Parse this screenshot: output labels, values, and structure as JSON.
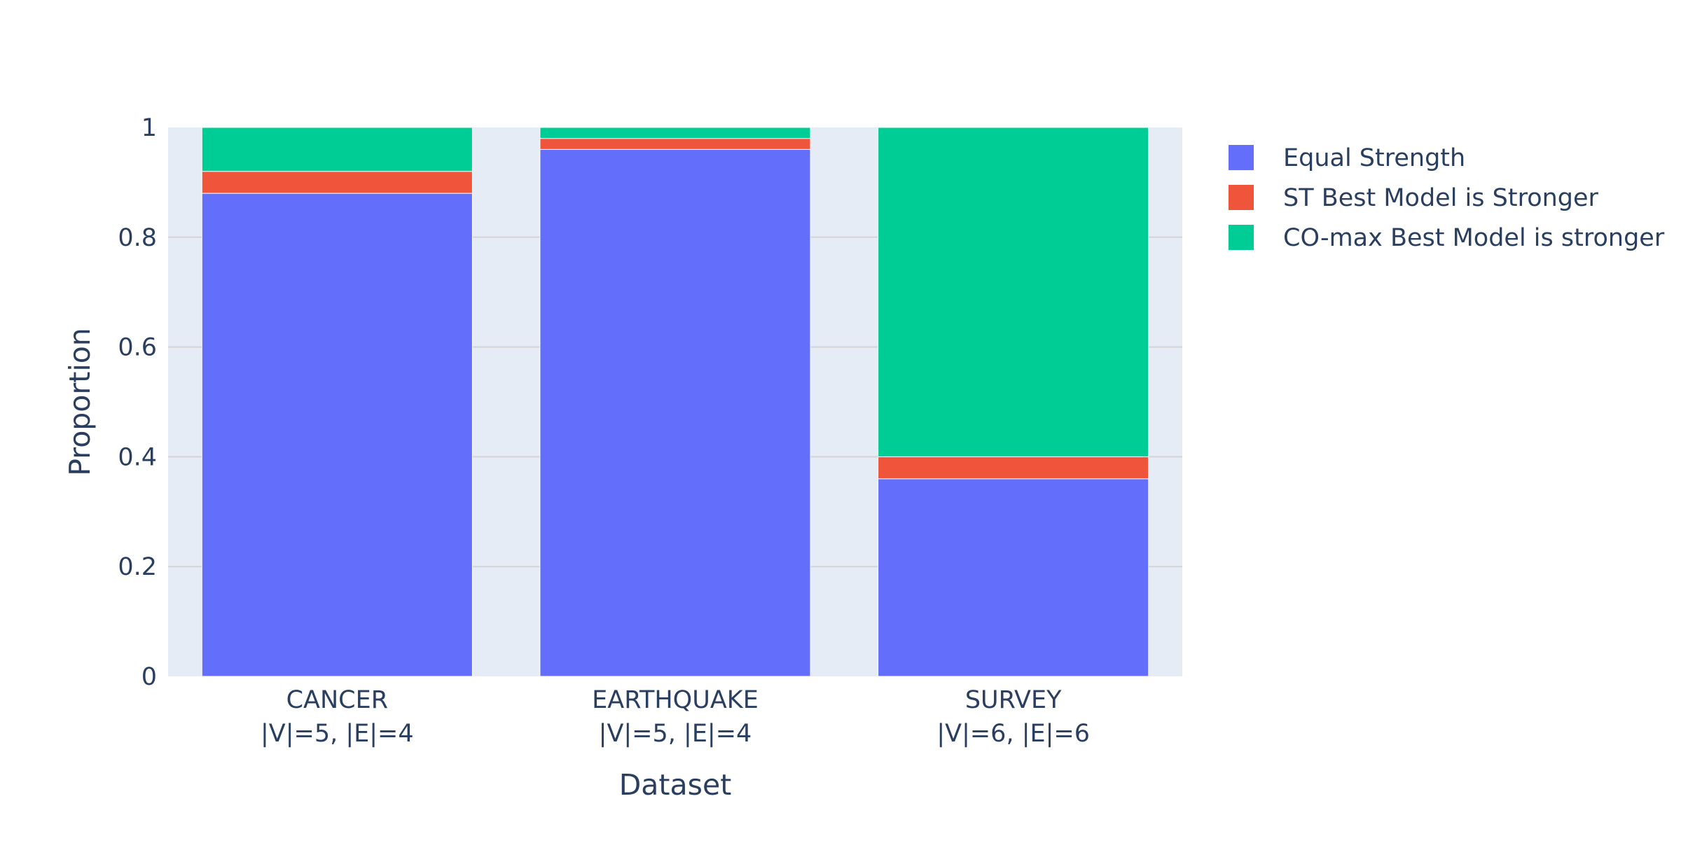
{
  "chart_data": {
    "type": "bar",
    "barmode": "stack",
    "title": "",
    "xlabel": "Dataset",
    "ylabel": "Proportion",
    "categories": [
      [
        "CANCER",
        "|V|=5, |E|=4"
      ],
      [
        "EARTHQUAKE",
        "|V|=5, |E|=4"
      ],
      [
        "SURVEY",
        "|V|=6, |E|=6"
      ]
    ],
    "series": [
      {
        "name": "Equal Strength",
        "color": "#636efa",
        "values": [
          0.88,
          0.96,
          0.36
        ]
      },
      {
        "name": "ST Best Model is Stronger",
        "color": "#ef553b",
        "values": [
          0.04,
          0.02,
          0.04
        ]
      },
      {
        "name": "CO-max Best Model is stronger",
        "color": "#00cc96",
        "values": [
          0.08,
          0.02,
          0.6
        ]
      }
    ],
    "ylim": [
      0,
      1
    ],
    "yticks": [
      0,
      0.2,
      0.4,
      0.6,
      0.8,
      1
    ],
    "ytick_labels": [
      "0",
      "0.2",
      "0.4",
      "0.6",
      "0.8",
      "1"
    ],
    "grid": true,
    "plot_background": "#e5ecf6",
    "grid_color": "#d3d3d3",
    "legend_placement": "top-right, outside plot"
  }
}
